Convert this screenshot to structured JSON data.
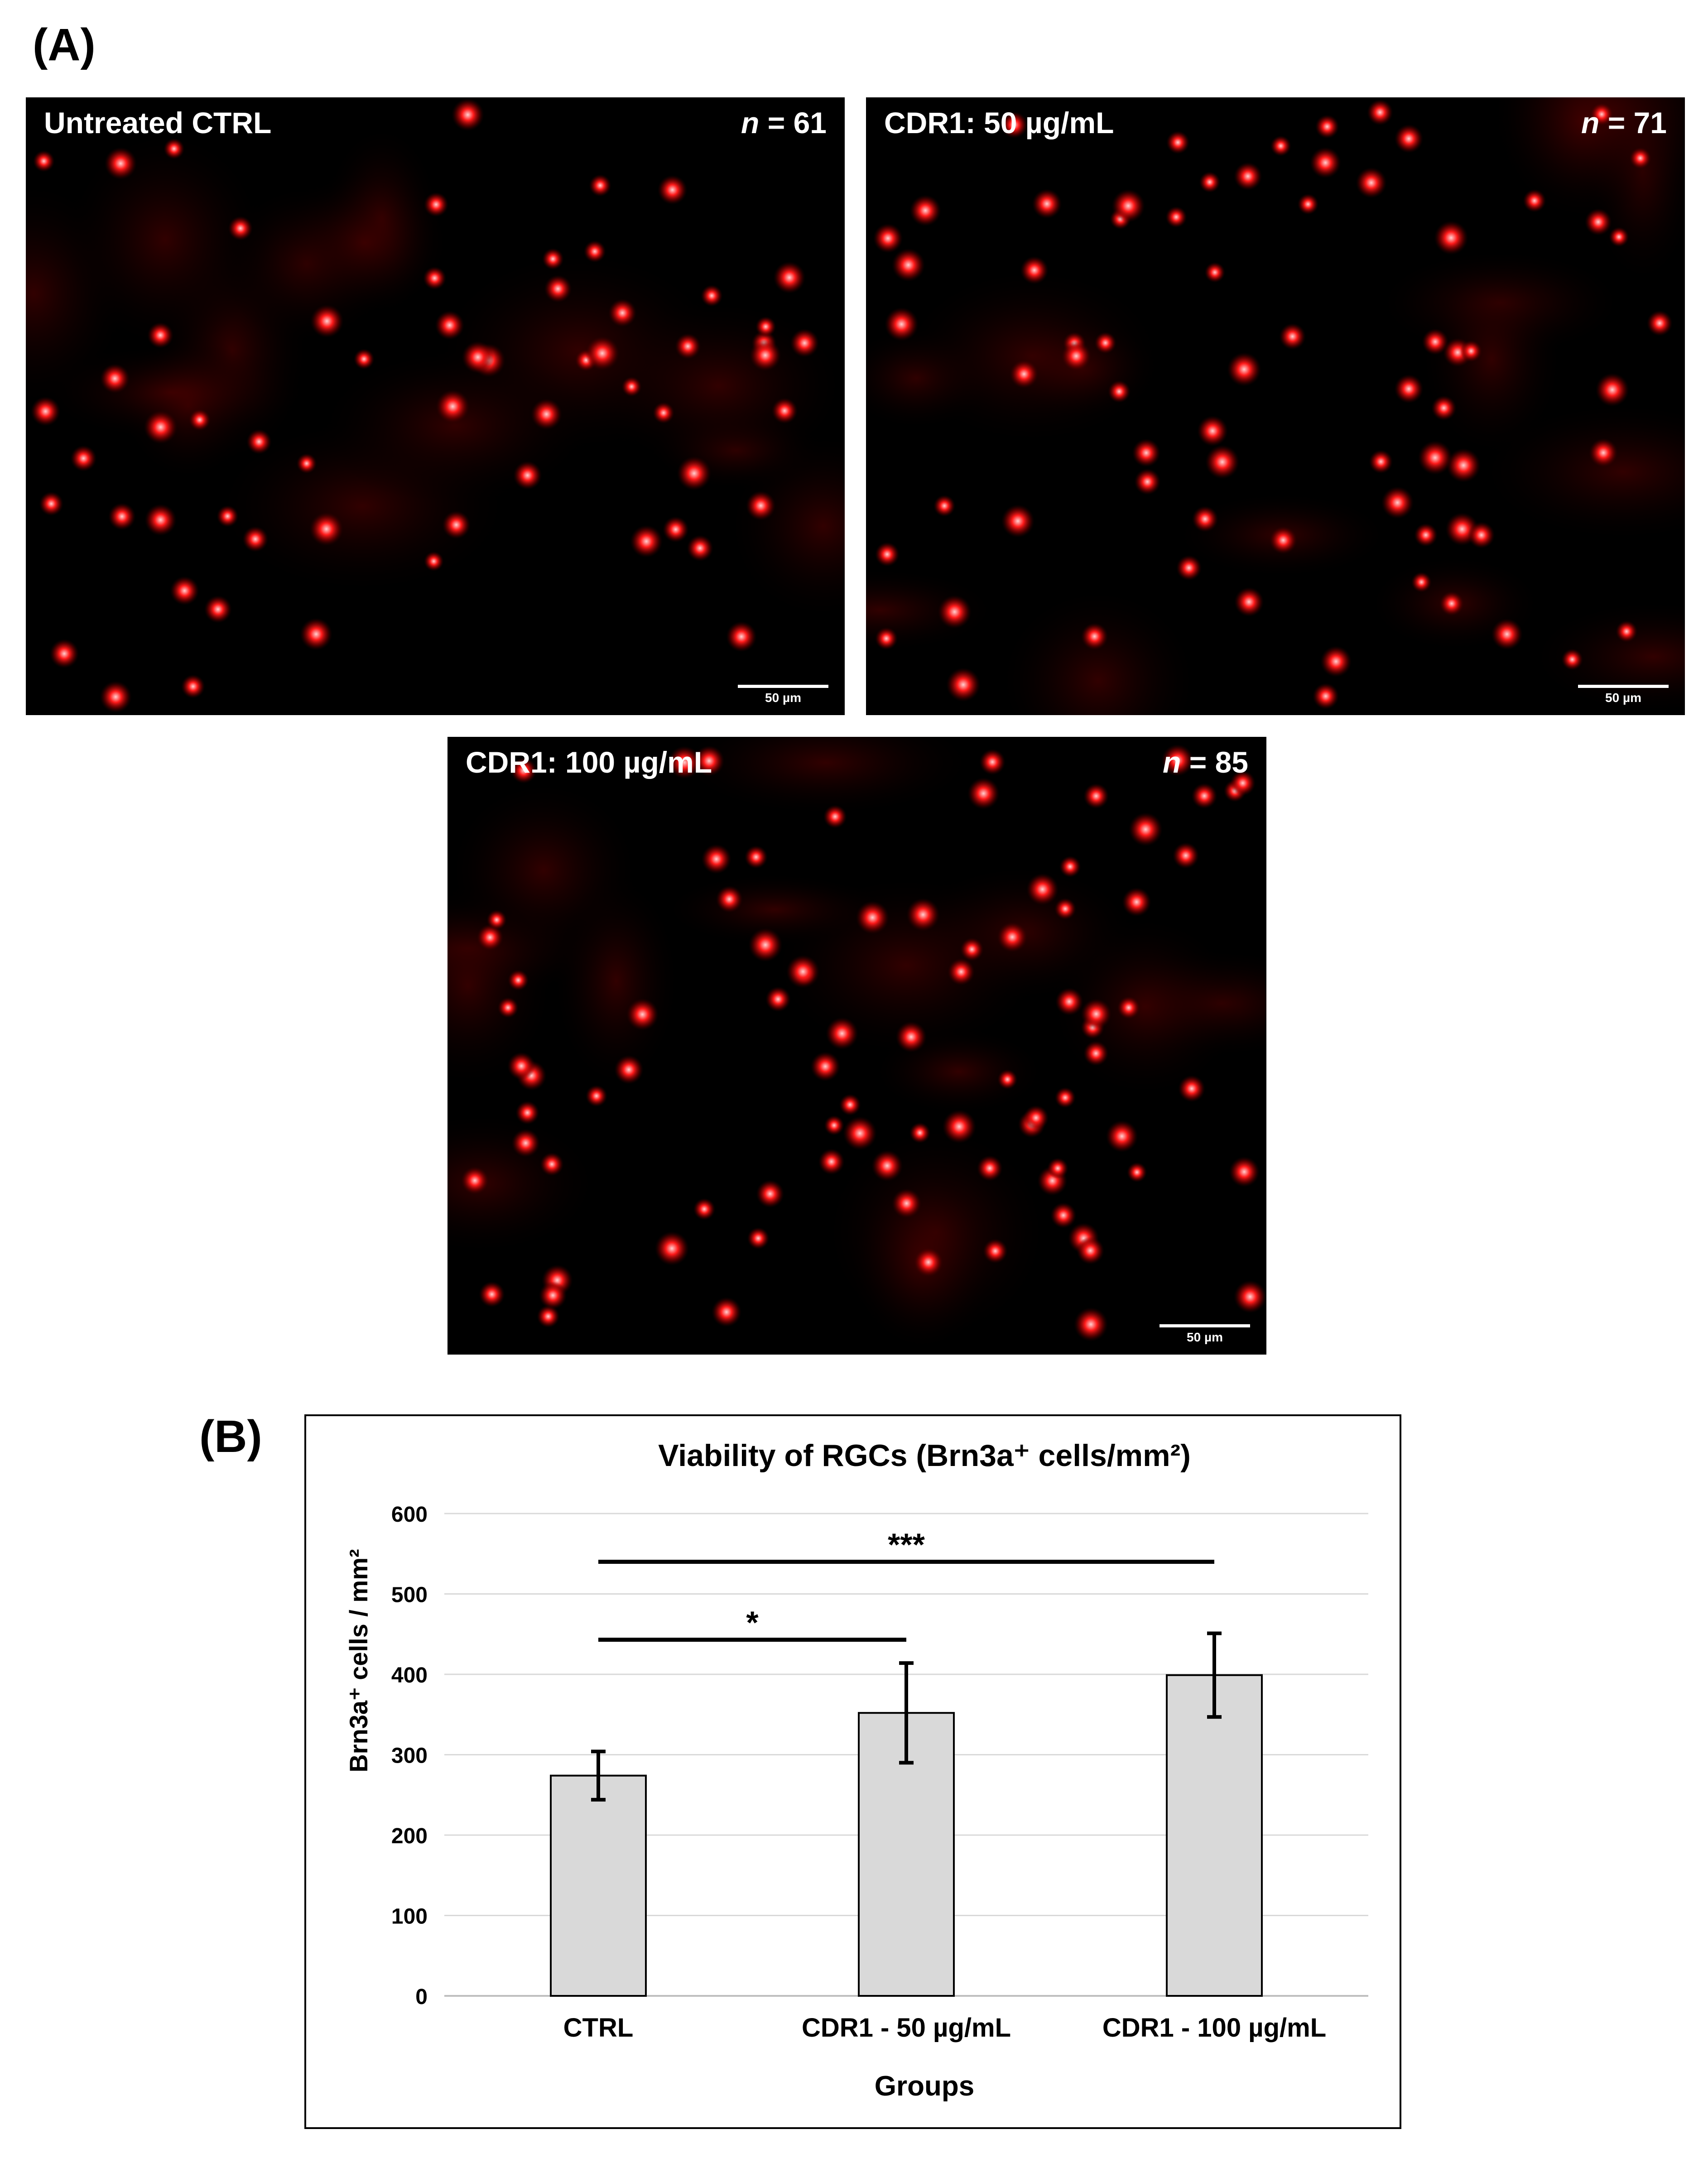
{
  "panel_a": {
    "label": "(A)",
    "images": [
      {
        "condition": "Untreated CTRL",
        "n_label": "n",
        "n_value": "= 61",
        "scale_label": "50 µm",
        "cells": 61
      },
      {
        "condition": "CDR1: 50 µg/mL",
        "n_label": "n",
        "n_value": "= 71",
        "scale_label": "50 µm",
        "cells": 71
      },
      {
        "condition": "CDR1: 100 µg/mL",
        "n_label": "n",
        "n_value": "= 85",
        "scale_label": "50 µm",
        "cells": 85
      }
    ],
    "colors": {
      "background": "#000000",
      "stain": "#ff1a1a"
    }
  },
  "panel_b": {
    "label": "(B)"
  },
  "chart_data": {
    "type": "bar",
    "title": "Viability of RGCs (Brn3a⁺ cells/mm²)",
    "xlabel": "Groups",
    "ylabel": "Brn3a⁺ cells / mm²",
    "categories": [
      "CTRL",
      "CDR1 - 50 µg/mL",
      "CDR1 - 100 µg/mL"
    ],
    "values": [
      274,
      352,
      399
    ],
    "error": [
      30,
      62,
      52
    ],
    "ylim": [
      0,
      600
    ],
    "yticks": [
      0,
      100,
      200,
      300,
      400,
      500,
      600
    ],
    "grid": true,
    "bar_color": "#d9d9d9",
    "significance": [
      {
        "from": 0,
        "to": 1,
        "label": "*"
      },
      {
        "from": 0,
        "to": 2,
        "label": "***"
      }
    ]
  }
}
